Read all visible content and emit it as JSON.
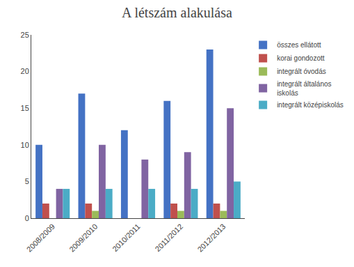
{
  "chart_data": {
    "type": "bar",
    "title": "A létszám alakulása",
    "categories": [
      "2008/2009",
      "2009/2010",
      "2010/2011",
      "2011/2012",
      "2012/2013"
    ],
    "series": [
      {
        "name": "összes ellátott",
        "color": "#4472C4",
        "values": [
          10,
          17,
          12,
          16,
          23
        ]
      },
      {
        "name": "korai gondozott",
        "color": "#C0504D",
        "values": [
          2,
          2,
          0,
          2,
          2
        ]
      },
      {
        "name": "integrált óvodás",
        "color": "#9BBB59",
        "values": [
          0,
          1,
          0,
          1,
          1
        ]
      },
      {
        "name": "integrált általános\niskolás",
        "color": "#8064A2",
        "values": [
          4,
          10,
          8,
          9,
          15
        ]
      },
      {
        "name": "integrált középiskolás",
        "color": "#4BACC6",
        "values": [
          4,
          4,
          4,
          4,
          5
        ]
      }
    ],
    "ylim": [
      0,
      25
    ],
    "yticks": [
      0,
      5,
      10,
      15,
      20,
      25
    ],
    "grid": false,
    "legend": "right"
  }
}
